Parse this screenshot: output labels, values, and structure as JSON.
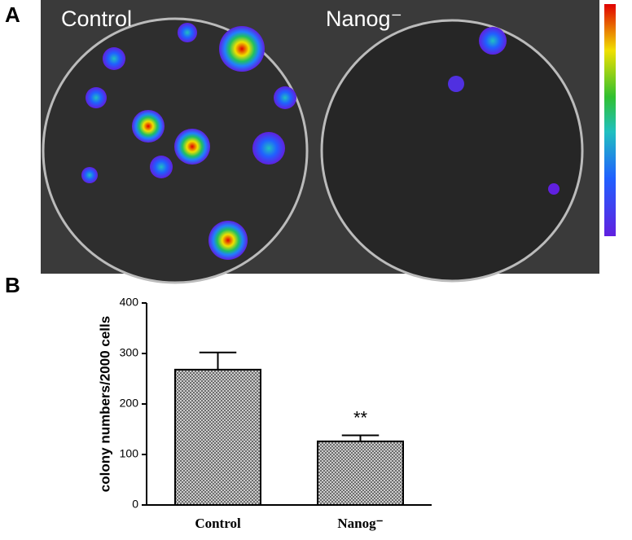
{
  "panels": {
    "a": {
      "label": "A",
      "labels": [
        "Control",
        "Nanog⁻"
      ]
    },
    "b": {
      "label": "B"
    }
  },
  "chart_data": {
    "type": "bar",
    "categories": [
      "Control",
      "Nanog⁻"
    ],
    "values": [
      268,
      126
    ],
    "errors": [
      34,
      12
    ],
    "annotations": [
      {
        "text": "**",
        "category": 1
      }
    ],
    "ylabel": "colony numbers/2000 cells",
    "ylim": [
      0,
      400
    ],
    "yticks": [
      0,
      100,
      200,
      300,
      400
    ],
    "color": "#9a9a9a"
  }
}
